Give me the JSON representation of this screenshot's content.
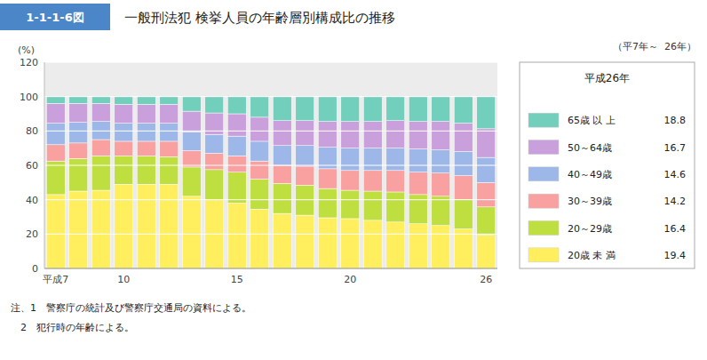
{
  "chart_data": {
    "type": "bar",
    "stacked": true,
    "figure_number": "1-1-1-6図",
    "title": "一般刑法犯 検挙人員の年齢層別構成比の推移",
    "subtitle": "（平7年～  26年）",
    "y_label": "(%)",
    "legend_title": "平成26年",
    "annotations": [
      "注、1　警察庁の統計及び警察庁交通局の資料による。",
      "　2　犯行時の年齢による。"
    ],
    "categories": [
      "平成7",
      null,
      null,
      "10",
      null,
      null,
      null,
      null,
      "15",
      null,
      null,
      null,
      null,
      "20",
      null,
      null,
      null,
      null,
      null,
      "26"
    ],
    "series": [
      {
        "name": "20歳 未 満",
        "color": "#FFEF5E",
        "values": [
          43.0,
          45.0,
          45.5,
          49.0,
          49.0,
          49.0,
          42.0,
          40.0,
          38.0,
          34.5,
          32.0,
          31.0,
          29.5,
          29.0,
          28.0,
          27.0,
          26.0,
          25.0,
          23.0,
          19.4
        ]
      },
      {
        "name": "20～29歳",
        "color": "#BFDF40",
        "values": [
          19.5,
          19.0,
          20.0,
          16.5,
          16.5,
          16.0,
          17.0,
          17.5,
          18.0,
          17.5,
          17.5,
          17.5,
          17.0,
          16.5,
          17.0,
          17.5,
          17.0,
          17.0,
          17.0,
          16.4
        ]
      },
      {
        "name": "30～39歳",
        "color": "#F9A0A0",
        "values": [
          9.5,
          9.0,
          9.5,
          8.5,
          8.5,
          9.0,
          9.5,
          9.5,
          9.5,
          10.5,
          10.5,
          11.0,
          11.5,
          11.5,
          12.0,
          12.5,
          13.0,
          13.5,
          14.0,
          14.2
        ]
      },
      {
        "name": "40～49歳",
        "color": "#9DB8E8",
        "values": [
          12.5,
          12.0,
          10.5,
          10.5,
          10.5,
          10.5,
          11.0,
          11.0,
          11.5,
          11.5,
          11.5,
          12.0,
          12.5,
          13.0,
          13.0,
          13.0,
          13.5,
          13.5,
          14.0,
          14.6
        ]
      },
      {
        "name": "50～64歳",
        "color": "#C9A0DC",
        "values": [
          11.5,
          11.0,
          10.5,
          11.0,
          11.0,
          11.0,
          12.0,
          12.5,
          13.0,
          14.0,
          14.5,
          14.5,
          15.0,
          15.5,
          15.5,
          16.0,
          16.0,
          16.5,
          16.5,
          16.7
        ]
      },
      {
        "name": "65歳 以 上",
        "color": "#72CFBC",
        "values": [
          4.0,
          4.0,
          4.0,
          4.5,
          4.5,
          4.5,
          8.5,
          9.5,
          10.0,
          12.0,
          14.0,
          14.0,
          14.5,
          14.5,
          14.5,
          14.0,
          14.5,
          14.5,
          15.5,
          18.8
        ]
      }
    ],
    "ylim": [
      0,
      120
    ],
    "yticks": [
      0,
      20,
      40,
      60,
      80,
      100,
      120
    ],
    "grid": true,
    "legend": "right"
  }
}
